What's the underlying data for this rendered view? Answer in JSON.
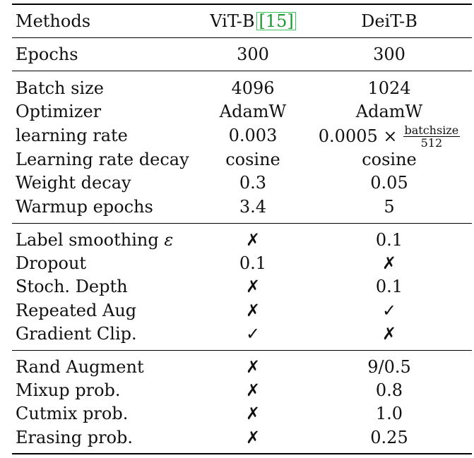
{
  "header": {
    "methods": "Methods",
    "vit": "ViT-B",
    "vit_cite": "[15]",
    "deit": "DeiT-B"
  },
  "epochs_row": {
    "label": "Epochs",
    "vit": "300",
    "deit": "300"
  },
  "training": [
    {
      "label": "Batch size",
      "vit": "4096",
      "deit": "1024"
    },
    {
      "label": "Optimizer",
      "vit": "AdamW",
      "deit": "AdamW"
    },
    {
      "label": "learning rate",
      "vit": "0.003",
      "deit_prefix": "0.0005 ×",
      "deit_num": "batchsize",
      "deit_den": "512"
    },
    {
      "label": "Learning rate decay",
      "vit": "cosine",
      "deit": "cosine"
    },
    {
      "label": "Weight decay",
      "vit": "0.3",
      "deit": "0.05"
    },
    {
      "label": "Warmup epochs",
      "vit": "3.4",
      "deit": "5"
    }
  ],
  "regularization": [
    {
      "label": "Label smoothing",
      "label_symbol": "ε",
      "vit": "✗",
      "deit": "0.1"
    },
    {
      "label": "Dropout",
      "vit": "0.1",
      "deit": "✗"
    },
    {
      "label": "Stoch. Depth",
      "vit": "✗",
      "deit": "0.1"
    },
    {
      "label": "Repeated Aug",
      "vit": "✗",
      "deit": "✓"
    },
    {
      "label": "Gradient Clip.",
      "vit": "✓",
      "deit": "✗"
    }
  ],
  "augmentation": [
    {
      "label": "Rand Augment",
      "vit": "✗",
      "deit": "9/0.5"
    },
    {
      "label": "Mixup prob.",
      "vit": "✗",
      "deit": "0.8"
    },
    {
      "label": "Cutmix prob.",
      "vit": "✗",
      "deit": "1.0"
    },
    {
      "label": "Erasing prob.",
      "vit": "✗",
      "deit": "0.25"
    }
  ]
}
